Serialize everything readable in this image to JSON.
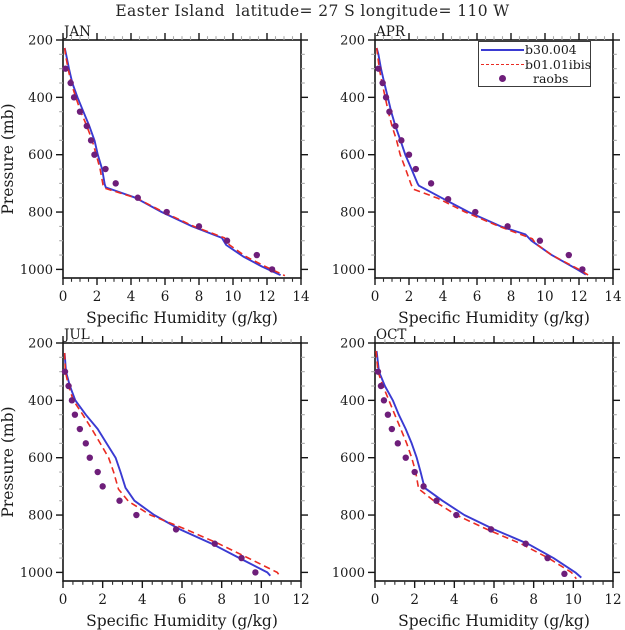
{
  "title": "Easter Island  latitude= 27 S longitude= 110 W",
  "colors": {
    "model_b30": "#3a3ad2",
    "model_b01": "#ea2b22",
    "raobs": "#6e1e7a",
    "axis": "#161616",
    "minor_tick_light": "#a8a8a8",
    "minor_tick_dark": "#2c2c2c"
  },
  "legend": {
    "entries": [
      {
        "label": "b30.004",
        "symbol": "solid-line",
        "color": "#3a3ad2"
      },
      {
        "label": "b01.01ibis",
        "symbol": "dashed-line",
        "color": "#ea2b22"
      },
      {
        "label": "raobs",
        "symbol": "dot",
        "color": "#6e1e7a"
      }
    ]
  },
  "axes": {
    "xlabel": "Specific Humidity (g/kg)",
    "ylabel": "Pressure (mb)",
    "ylim": [
      200,
      1030
    ],
    "yticks": [
      200,
      400,
      600,
      800,
      1000
    ],
    "y_minor_step": 50
  },
  "chart_data": [
    {
      "type": "line",
      "month": "JAN",
      "xlim": [
        0,
        14
      ],
      "xticks": [
        0,
        2,
        4,
        6,
        8,
        10,
        12,
        14
      ],
      "x_minor_step": 0.5,
      "show_ylabel": true,
      "series": [
        {
          "name": "b30.004",
          "style": "solid",
          "color": "#3a3ad2",
          "points": [
            [
              0.1,
              228
            ],
            [
              0.18,
              250
            ],
            [
              0.35,
              300
            ],
            [
              0.55,
              350
            ],
            [
              0.85,
              400
            ],
            [
              1.2,
              450
            ],
            [
              1.55,
              500
            ],
            [
              1.85,
              550
            ],
            [
              2.05,
              600
            ],
            [
              2.3,
              650
            ],
            [
              2.45,
              703
            ],
            [
              2.52,
              714
            ],
            [
              4.25,
              750
            ],
            [
              5.8,
              800
            ],
            [
              7.6,
              850
            ],
            [
              9.35,
              890
            ],
            [
              9.6,
              915
            ],
            [
              10.6,
              955
            ],
            [
              11.7,
              990
            ],
            [
              12.8,
              1020
            ]
          ]
        },
        {
          "name": "b01.01ibis",
          "style": "dashed",
          "color": "#ea2b22",
          "points": [
            [
              0.1,
              228
            ],
            [
              0.14,
              250
            ],
            [
              0.3,
              300
            ],
            [
              0.48,
              350
            ],
            [
              0.75,
              400
            ],
            [
              1.05,
              450
            ],
            [
              1.4,
              500
            ],
            [
              1.72,
              550
            ],
            [
              1.95,
              600
            ],
            [
              2.18,
              650
            ],
            [
              2.35,
              705
            ],
            [
              2.45,
              717
            ],
            [
              4.35,
              752
            ],
            [
              5.9,
              800
            ],
            [
              7.7,
              850
            ],
            [
              9.5,
              890
            ],
            [
              9.8,
              915
            ],
            [
              10.75,
              955
            ],
            [
              11.9,
              990
            ],
            [
              13.05,
              1022
            ]
          ]
        },
        {
          "name": "raobs",
          "style": "dots",
          "color": "#6e1e7a",
          "points": [
            [
              0.15,
              300
            ],
            [
              0.45,
              350
            ],
            [
              0.65,
              400
            ],
            [
              1.0,
              450
            ],
            [
              1.4,
              500
            ],
            [
              1.65,
              550
            ],
            [
              1.85,
              600
            ],
            [
              2.5,
              650
            ],
            [
              3.1,
              700
            ],
            [
              4.4,
              750
            ],
            [
              6.1,
              800
            ],
            [
              8.0,
              850
            ],
            [
              9.65,
              900
            ],
            [
              11.4,
              950
            ],
            [
              12.3,
              1000
            ]
          ]
        }
      ]
    },
    {
      "type": "line",
      "month": "APR",
      "xlim": [
        0,
        14
      ],
      "xticks": [
        0,
        2,
        4,
        6,
        8,
        10,
        12,
        14
      ],
      "x_minor_step": 0.5,
      "show_ylabel": false,
      "series": [
        {
          "name": "b30.004",
          "style": "solid",
          "color": "#3a3ad2",
          "points": [
            [
              0.1,
              228
            ],
            [
              0.2,
              250
            ],
            [
              0.35,
              300
            ],
            [
              0.55,
              350
            ],
            [
              0.75,
              400
            ],
            [
              0.95,
              450
            ],
            [
              1.2,
              500
            ],
            [
              1.5,
              550
            ],
            [
              1.78,
              600
            ],
            [
              2.15,
              650
            ],
            [
              2.5,
              700
            ],
            [
              2.58,
              708
            ],
            [
              3.9,
              750
            ],
            [
              5.5,
              800
            ],
            [
              7.4,
              850
            ],
            [
              8.85,
              878
            ],
            [
              9.2,
              900
            ],
            [
              10.4,
              950
            ],
            [
              11.9,
              1000
            ],
            [
              12.4,
              1018
            ]
          ]
        },
        {
          "name": "b01.01ibis",
          "style": "dashed",
          "color": "#ea2b22",
          "points": [
            [
              0.1,
              228
            ],
            [
              0.15,
              250
            ],
            [
              0.25,
              300
            ],
            [
              0.42,
              350
            ],
            [
              0.6,
              400
            ],
            [
              0.78,
              450
            ],
            [
              1.0,
              500
            ],
            [
              1.27,
              550
            ],
            [
              1.48,
              600
            ],
            [
              1.8,
              650
            ],
            [
              2.1,
              700
            ],
            [
              2.24,
              720
            ],
            [
              3.7,
              752
            ],
            [
              5.3,
              800
            ],
            [
              7.3,
              850
            ],
            [
              9.25,
              893
            ],
            [
              9.45,
              910
            ],
            [
              10.4,
              950
            ],
            [
              12.0,
              1000
            ],
            [
              12.55,
              1020
            ]
          ]
        },
        {
          "name": "raobs",
          "style": "dots",
          "color": "#6e1e7a",
          "points": [
            [
              0.2,
              300
            ],
            [
              0.45,
              350
            ],
            [
              0.65,
              400
            ],
            [
              0.85,
              450
            ],
            [
              1.2,
              500
            ],
            [
              1.55,
              550
            ],
            [
              2.0,
              600
            ],
            [
              2.4,
              650
            ],
            [
              3.3,
              700
            ],
            [
              4.3,
              755
            ],
            [
              5.9,
              800
            ],
            [
              7.8,
              850
            ],
            [
              9.7,
              900
            ],
            [
              11.4,
              950
            ],
            [
              12.2,
              1000
            ]
          ]
        }
      ]
    },
    {
      "type": "line",
      "month": "JUL",
      "xlim": [
        0,
        12
      ],
      "xticks": [
        0,
        2,
        4,
        6,
        8,
        10,
        12
      ],
      "x_minor_step": 0.5,
      "show_ylabel": true,
      "series": [
        {
          "name": "b30.004",
          "style": "solid",
          "color": "#3a3ad2",
          "points": [
            [
              0.08,
              235
            ],
            [
              0.15,
              300
            ],
            [
              0.35,
              350
            ],
            [
              0.62,
              400
            ],
            [
              1.15,
              450
            ],
            [
              1.75,
              500
            ],
            [
              2.2,
              550
            ],
            [
              2.65,
              600
            ],
            [
              2.9,
              650
            ],
            [
              3.15,
              705
            ],
            [
              3.6,
              750
            ],
            [
              4.6,
              800
            ],
            [
              5.9,
              850
            ],
            [
              7.5,
              900
            ],
            [
              8.9,
              950
            ],
            [
              10.3,
              1000
            ],
            [
              10.45,
              1012
            ]
          ]
        },
        {
          "name": "b01.01ibis",
          "style": "dashed",
          "color": "#ea2b22",
          "points": [
            [
              0.08,
              235
            ],
            [
              0.12,
              300
            ],
            [
              0.28,
              350
            ],
            [
              0.52,
              400
            ],
            [
              1.0,
              450
            ],
            [
              1.45,
              500
            ],
            [
              1.88,
              550
            ],
            [
              2.3,
              600
            ],
            [
              2.55,
              650
            ],
            [
              2.8,
              710
            ],
            [
              3.3,
              752
            ],
            [
              4.4,
              800
            ],
            [
              6.2,
              850
            ],
            [
              7.85,
              900
            ],
            [
              9.35,
              950
            ],
            [
              10.8,
              1000
            ],
            [
              10.95,
              1014
            ]
          ]
        },
        {
          "name": "raobs",
          "style": "dots",
          "color": "#6e1e7a",
          "points": [
            [
              0.1,
              300
            ],
            [
              0.28,
              350
            ],
            [
              0.45,
              400
            ],
            [
              0.6,
              450
            ],
            [
              0.85,
              500
            ],
            [
              1.15,
              550
            ],
            [
              1.35,
              600
            ],
            [
              1.75,
              650
            ],
            [
              2.0,
              700
            ],
            [
              2.85,
              750
            ],
            [
              3.7,
              800
            ],
            [
              5.7,
              850
            ],
            [
              7.65,
              900
            ],
            [
              9.0,
              950
            ],
            [
              9.7,
              1000
            ]
          ]
        }
      ]
    },
    {
      "type": "line",
      "month": "OCT",
      "xlim": [
        0,
        12
      ],
      "xticks": [
        0,
        2,
        4,
        6,
        8,
        10,
        12
      ],
      "x_minor_step": 0.5,
      "show_ylabel": false,
      "series": [
        {
          "name": "b30.004",
          "style": "solid",
          "color": "#3a3ad2",
          "points": [
            [
              0.08,
              228
            ],
            [
              0.2,
              300
            ],
            [
              0.5,
              350
            ],
            [
              0.9,
              400
            ],
            [
              1.2,
              450
            ],
            [
              1.55,
              500
            ],
            [
              1.85,
              550
            ],
            [
              2.1,
              600
            ],
            [
              2.3,
              650
            ],
            [
              2.5,
              705
            ],
            [
              3.4,
              750
            ],
            [
              4.5,
              800
            ],
            [
              6.0,
              850
            ],
            [
              7.7,
              900
            ],
            [
              9.0,
              950
            ],
            [
              10.1,
              1000
            ],
            [
              10.4,
              1018
            ]
          ]
        },
        {
          "name": "b01.01ibis",
          "style": "dashed",
          "color": "#ea2b22",
          "points": [
            [
              0.05,
              228
            ],
            [
              0.15,
              300
            ],
            [
              0.4,
              350
            ],
            [
              0.7,
              400
            ],
            [
              1.0,
              450
            ],
            [
              1.3,
              500
            ],
            [
              1.6,
              550
            ],
            [
              1.85,
              600
            ],
            [
              2.05,
              650
            ],
            [
              2.2,
              708
            ],
            [
              3.0,
              752
            ],
            [
              4.1,
              800
            ],
            [
              5.65,
              850
            ],
            [
              7.35,
              900
            ],
            [
              8.75,
              950
            ],
            [
              9.9,
              1000
            ],
            [
              10.15,
              1022
            ]
          ]
        },
        {
          "name": "raobs",
          "style": "dots",
          "color": "#6e1e7a",
          "points": [
            [
              0.15,
              300
            ],
            [
              0.3,
              350
            ],
            [
              0.45,
              400
            ],
            [
              0.65,
              450
            ],
            [
              0.85,
              500
            ],
            [
              1.15,
              550
            ],
            [
              1.55,
              600
            ],
            [
              2.0,
              650
            ],
            [
              2.45,
              700
            ],
            [
              3.1,
              750
            ],
            [
              4.1,
              800
            ],
            [
              5.85,
              850
            ],
            [
              7.6,
              900
            ],
            [
              8.7,
              950
            ],
            [
              9.55,
              1005
            ]
          ]
        }
      ]
    }
  ]
}
